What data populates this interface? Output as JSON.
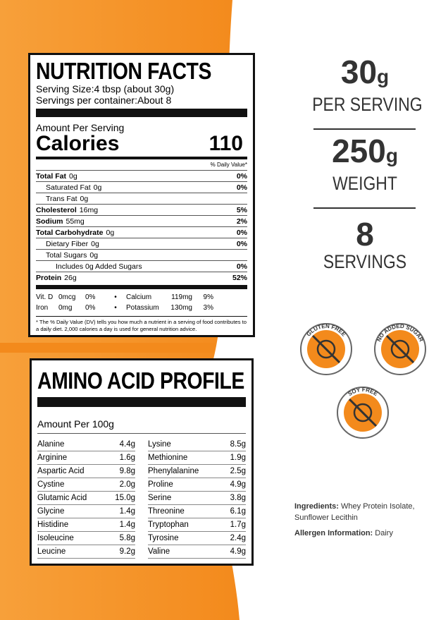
{
  "nutrition": {
    "title": "NUTRITION FACTS",
    "serving_size": "Serving Size:4 tbsp (about 30g)",
    "servings": "Servings per container:About 8",
    "amount_per_serving": "Amount Per Serving",
    "calories_label": "Calories",
    "calories": "110",
    "dv_header": "% Daily Value*",
    "rows": [
      {
        "label": "Total Fat",
        "amount": "0g",
        "dv": "0%",
        "bold": true
      },
      {
        "label": "Saturated Fat",
        "amount": "0g",
        "dv": "0%",
        "indent": 1
      },
      {
        "label": "Trans Fat",
        "amount": "0g",
        "indent": 1
      },
      {
        "label": "Cholesterol",
        "amount": "16mg",
        "dv": "5%",
        "bold": true
      },
      {
        "label": "Sodium",
        "amount": "55mg",
        "dv": "2%",
        "bold": true
      },
      {
        "label": "Total Carbohydrate",
        "amount": "0g",
        "dv": "0%",
        "bold": true
      },
      {
        "label": "Dietary Fiber",
        "amount": "0g",
        "dv": "0%",
        "indent": 1
      },
      {
        "label": "Total Sugars",
        "amount": "0g",
        "indent": 1
      },
      {
        "label": "Includes 0g Added Sugars",
        "dv": "0%",
        "indent": 2
      },
      {
        "label": "Protein",
        "amount": "26g",
        "dv": "52%",
        "bold": true
      }
    ],
    "vitamins": [
      [
        {
          "label": "Vit. D",
          "amount": "0mcg",
          "dv": "0%"
        },
        {
          "label": "Calcium",
          "amount": "119mg",
          "dv": "9%"
        }
      ],
      [
        {
          "label": "Iron",
          "amount": "0mg",
          "dv": "0%"
        },
        {
          "label": "Potassium",
          "amount": "130mg",
          "dv": "3%"
        }
      ]
    ],
    "footnote": "* The % Daily Value (DV) tells you how much a nutrient in a serving of food contributes to a daily diet. 2,000 calories a day is used for general nutrition advice."
  },
  "amino": {
    "title": "AMINO ACID PROFILE",
    "amount": "Amount Per 100g",
    "columns": [
      [
        [
          "Alanine",
          "4.4g"
        ],
        [
          "Arginine",
          "1.6g"
        ],
        [
          "Aspartic Acid",
          "9.8g"
        ],
        [
          "Cystine",
          "2.0g"
        ],
        [
          "Glutamic Acid",
          "15.0g"
        ],
        [
          "Glycine",
          "1.4g"
        ],
        [
          "Histidine",
          "1.4g"
        ],
        [
          "Isoleucine",
          "5.8g"
        ],
        [
          "Leucine",
          "9.2g"
        ]
      ],
      [
        [
          "Lysine",
          "8.5g"
        ],
        [
          "Methionine",
          "1.9g"
        ],
        [
          "Phenylalanine",
          "2.5g"
        ],
        [
          "Proline",
          "4.9g"
        ],
        [
          "Serine",
          "3.8g"
        ],
        [
          "Threonine",
          "6.1g"
        ],
        [
          "Tryptophan",
          "1.7g"
        ],
        [
          "Tyrosine",
          "2.4g"
        ],
        [
          "Valine",
          "4.9g"
        ]
      ]
    ]
  },
  "stats": [
    {
      "value": "30",
      "unit": "g",
      "label": "PER SERVING"
    },
    {
      "value": "250",
      "unit": "g",
      "label": "WEIGHT"
    },
    {
      "value": "8",
      "label": "SERVINGS"
    }
  ],
  "badges": [
    "GLUTEN FREE",
    "NO ADDED SUGAR",
    "SOY FREE"
  ],
  "ingredients": {
    "label": "Ingredients:",
    "text": "Whey Protein Isolate, Sunflower Lecithin"
  },
  "allergen": {
    "label": "Allergen Information:",
    "text": "Dairy"
  }
}
